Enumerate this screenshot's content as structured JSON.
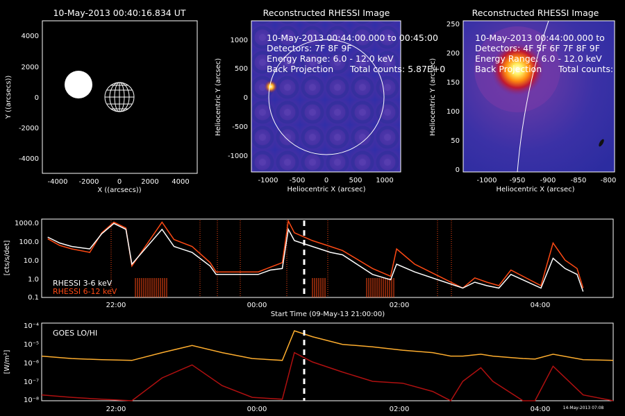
{
  "panel1": {
    "title": "10-May-2013 00:40:16.834 UT",
    "xlabel": "X ((arcsecs))",
    "ylabel": "Y ((arcsecs))",
    "xticks": [
      "-4000",
      "-2000",
      "0",
      "2000",
      "4000"
    ],
    "yticks": [
      "4000",
      "2000",
      "0",
      "-2000",
      "-4000"
    ]
  },
  "panel2": {
    "title": "Reconstructed RHESSI Image",
    "info": [
      "10-May-2013 00:44:00.000 to 00:45:00",
      "Detectors: 7F 8F 9F",
      "Energy Range: 6.0 - 12.0 keV",
      "Back Projection      Total counts: 5.87E+0"
    ],
    "xlabel": "Heliocentric X (arcsec)",
    "ylabel": "Heliocentric Y (arcsec)",
    "xticks": [
      "-1000",
      "-500",
      "0",
      "500",
      "1000"
    ],
    "yticks": [
      "1000",
      "500",
      "0",
      "-500",
      "-1000"
    ]
  },
  "panel3": {
    "title": "Reconstructed RHESSI Image",
    "info": [
      "10-May-2013 00:44:00.000 to",
      "Detectors: 4F 5F 6F 7F 8F 9F",
      "Energy Range: 6.0 - 12.0 keV",
      "Back Projection      Total counts:"
    ],
    "xlabel": "Heliocentric X (arcsec)",
    "ylabel": "Heliocentric Y (arcsec)",
    "xticks": [
      "-1000",
      "-950",
      "-900",
      "-850",
      "-800"
    ],
    "yticks": [
      "250",
      "200",
      "150",
      "100",
      "50",
      "0"
    ]
  },
  "rhessi": {
    "ylabel": "[cts/s/det]",
    "xlabel": "Start Time (09-May-13 21:00:00)",
    "yticks": [
      "1000.0",
      "100.0",
      "10.0",
      "1.0",
      "0.1"
    ],
    "xticks": [
      "22:00",
      "00:00",
      "02:00",
      "04:00"
    ],
    "legend": [
      {
        "label": "RHESSI  3-6 keV",
        "color": "#ffffff"
      },
      {
        "label": "RHESSI 6-12 keV",
        "color": "#ff4a14"
      }
    ]
  },
  "goes": {
    "label": "GOES LO/HI",
    "ylabel": "[W/m²]",
    "yticks": [
      "10⁻⁴",
      "10⁻⁵",
      "10⁻⁶",
      "10⁻⁷",
      "10⁻⁸"
    ],
    "xticks": [
      "22:00",
      "00:00",
      "02:00",
      "04:00"
    ],
    "xlabel": "Start Time (09-May-13 21:00:00)",
    "stamp": "14-May-2013 07:08"
  },
  "colors": {
    "rhessi_low": "#ffffff",
    "rhessi_high": "#ff4a14",
    "goes_lo": "#ffae2e",
    "goes_hi": "#b01010",
    "marker": "#ffffff"
  },
  "chart_data": [
    {
      "type": "line",
      "ylog": true,
      "ylim": [
        0.1,
        1000
      ],
      "xlim_hours": [
        21.0,
        30.5
      ],
      "series": [
        {
          "name": "RHESSI  3-6 keV",
          "x": [
            21.1,
            21.3,
            21.5,
            21.8,
            22.0,
            22.2,
            22.4,
            22.5,
            23.0,
            23.2,
            23.5,
            23.8,
            23.9,
            24.6,
            24.8,
            25.0,
            25.1,
            25.2,
            25.5,
            25.8,
            26.0,
            26.5,
            26.8,
            26.9,
            27.2,
            28.0,
            28.2,
            28.4,
            28.6,
            28.8,
            29.3,
            29.5,
            29.7,
            29.9,
            30.0
          ],
          "y": [
            120,
            60,
            40,
            30,
            180,
            600,
            300,
            5,
            300,
            40,
            20,
            4,
            1.5,
            1.5,
            2.5,
            3,
            300,
            80,
            40,
            20,
            15,
            1.5,
            0.8,
            5,
            2,
            0.3,
            0.6,
            0.4,
            0.3,
            1.5,
            0.3,
            10,
            3,
            1.5,
            0.2
          ]
        },
        {
          "name": "RHESSI 6-12 keV",
          "x": [
            21.1,
            21.3,
            21.5,
            21.8,
            22.0,
            22.2,
            22.4,
            22.5,
            23.0,
            23.2,
            23.5,
            23.8,
            23.9,
            24.6,
            24.8,
            25.0,
            25.1,
            25.2,
            25.5,
            25.8,
            26.0,
            26.5,
            26.8,
            26.9,
            27.2,
            28.0,
            28.2,
            28.4,
            28.6,
            28.8,
            29.3,
            29.5,
            29.7,
            29.9,
            30.0
          ],
          "y": [
            100,
            45,
            30,
            20,
            200,
            700,
            350,
            4,
            700,
            90,
            40,
            6,
            2,
            2,
            3.5,
            6,
            800,
            200,
            80,
            40,
            25,
            3,
            1.2,
            30,
            5,
            0.3,
            1.0,
            0.6,
            0.4,
            2.5,
            0.4,
            60,
            8,
            3,
            0.3
          ]
        }
      ]
    },
    {
      "type": "line",
      "ylog": true,
      "ylim": [
        1e-08,
        0.0001
      ],
      "xlim_hours": [
        21.0,
        30.5
      ],
      "series": [
        {
          "name": "GOES LO",
          "x": [
            21.0,
            21.5,
            22.0,
            22.5,
            23.0,
            23.5,
            24.0,
            24.5,
            25.0,
            25.2,
            25.5,
            26.0,
            26.5,
            27.0,
            27.5,
            27.8,
            28.0,
            28.3,
            28.5,
            29.0,
            29.2,
            29.5,
            30.0,
            30.5
          ],
          "y": [
            2e-06,
            1.5e-06,
            1.3e-06,
            1.2e-06,
            3e-06,
            7e-06,
            3e-06,
            1.5e-06,
            1.2e-06,
            4e-05,
            2e-05,
            8e-06,
            6e-06,
            4e-06,
            3e-06,
            2e-06,
            2e-06,
            2.5e-06,
            2e-06,
            1.5e-06,
            1.4e-06,
            2.5e-06,
            1.3e-06,
            1.2e-06
          ]
        },
        {
          "name": "GOES HI",
          "x": [
            21.0,
            21.5,
            22.0,
            22.5,
            23.0,
            23.5,
            24.0,
            24.5,
            25.0,
            25.2,
            25.5,
            26.0,
            26.5,
            27.0,
            27.5,
            27.8,
            28.0,
            28.3,
            28.5,
            29.0,
            29.2,
            29.5,
            30.0,
            30.5
          ],
          "y": [
            2e-08,
            1.5e-08,
            1.2e-08,
            1e-08,
            1.5e-07,
            7e-07,
            6e-08,
            1.5e-08,
            1.2e-08,
            3e-06,
            1e-06,
            3e-07,
            1e-07,
            8e-08,
            3e-08,
            1e-08,
            1e-07,
            5e-07,
            1e-07,
            1e-08,
            1e-08,
            6e-07,
            2e-08,
            1e-08
          ]
        }
      ]
    }
  ]
}
